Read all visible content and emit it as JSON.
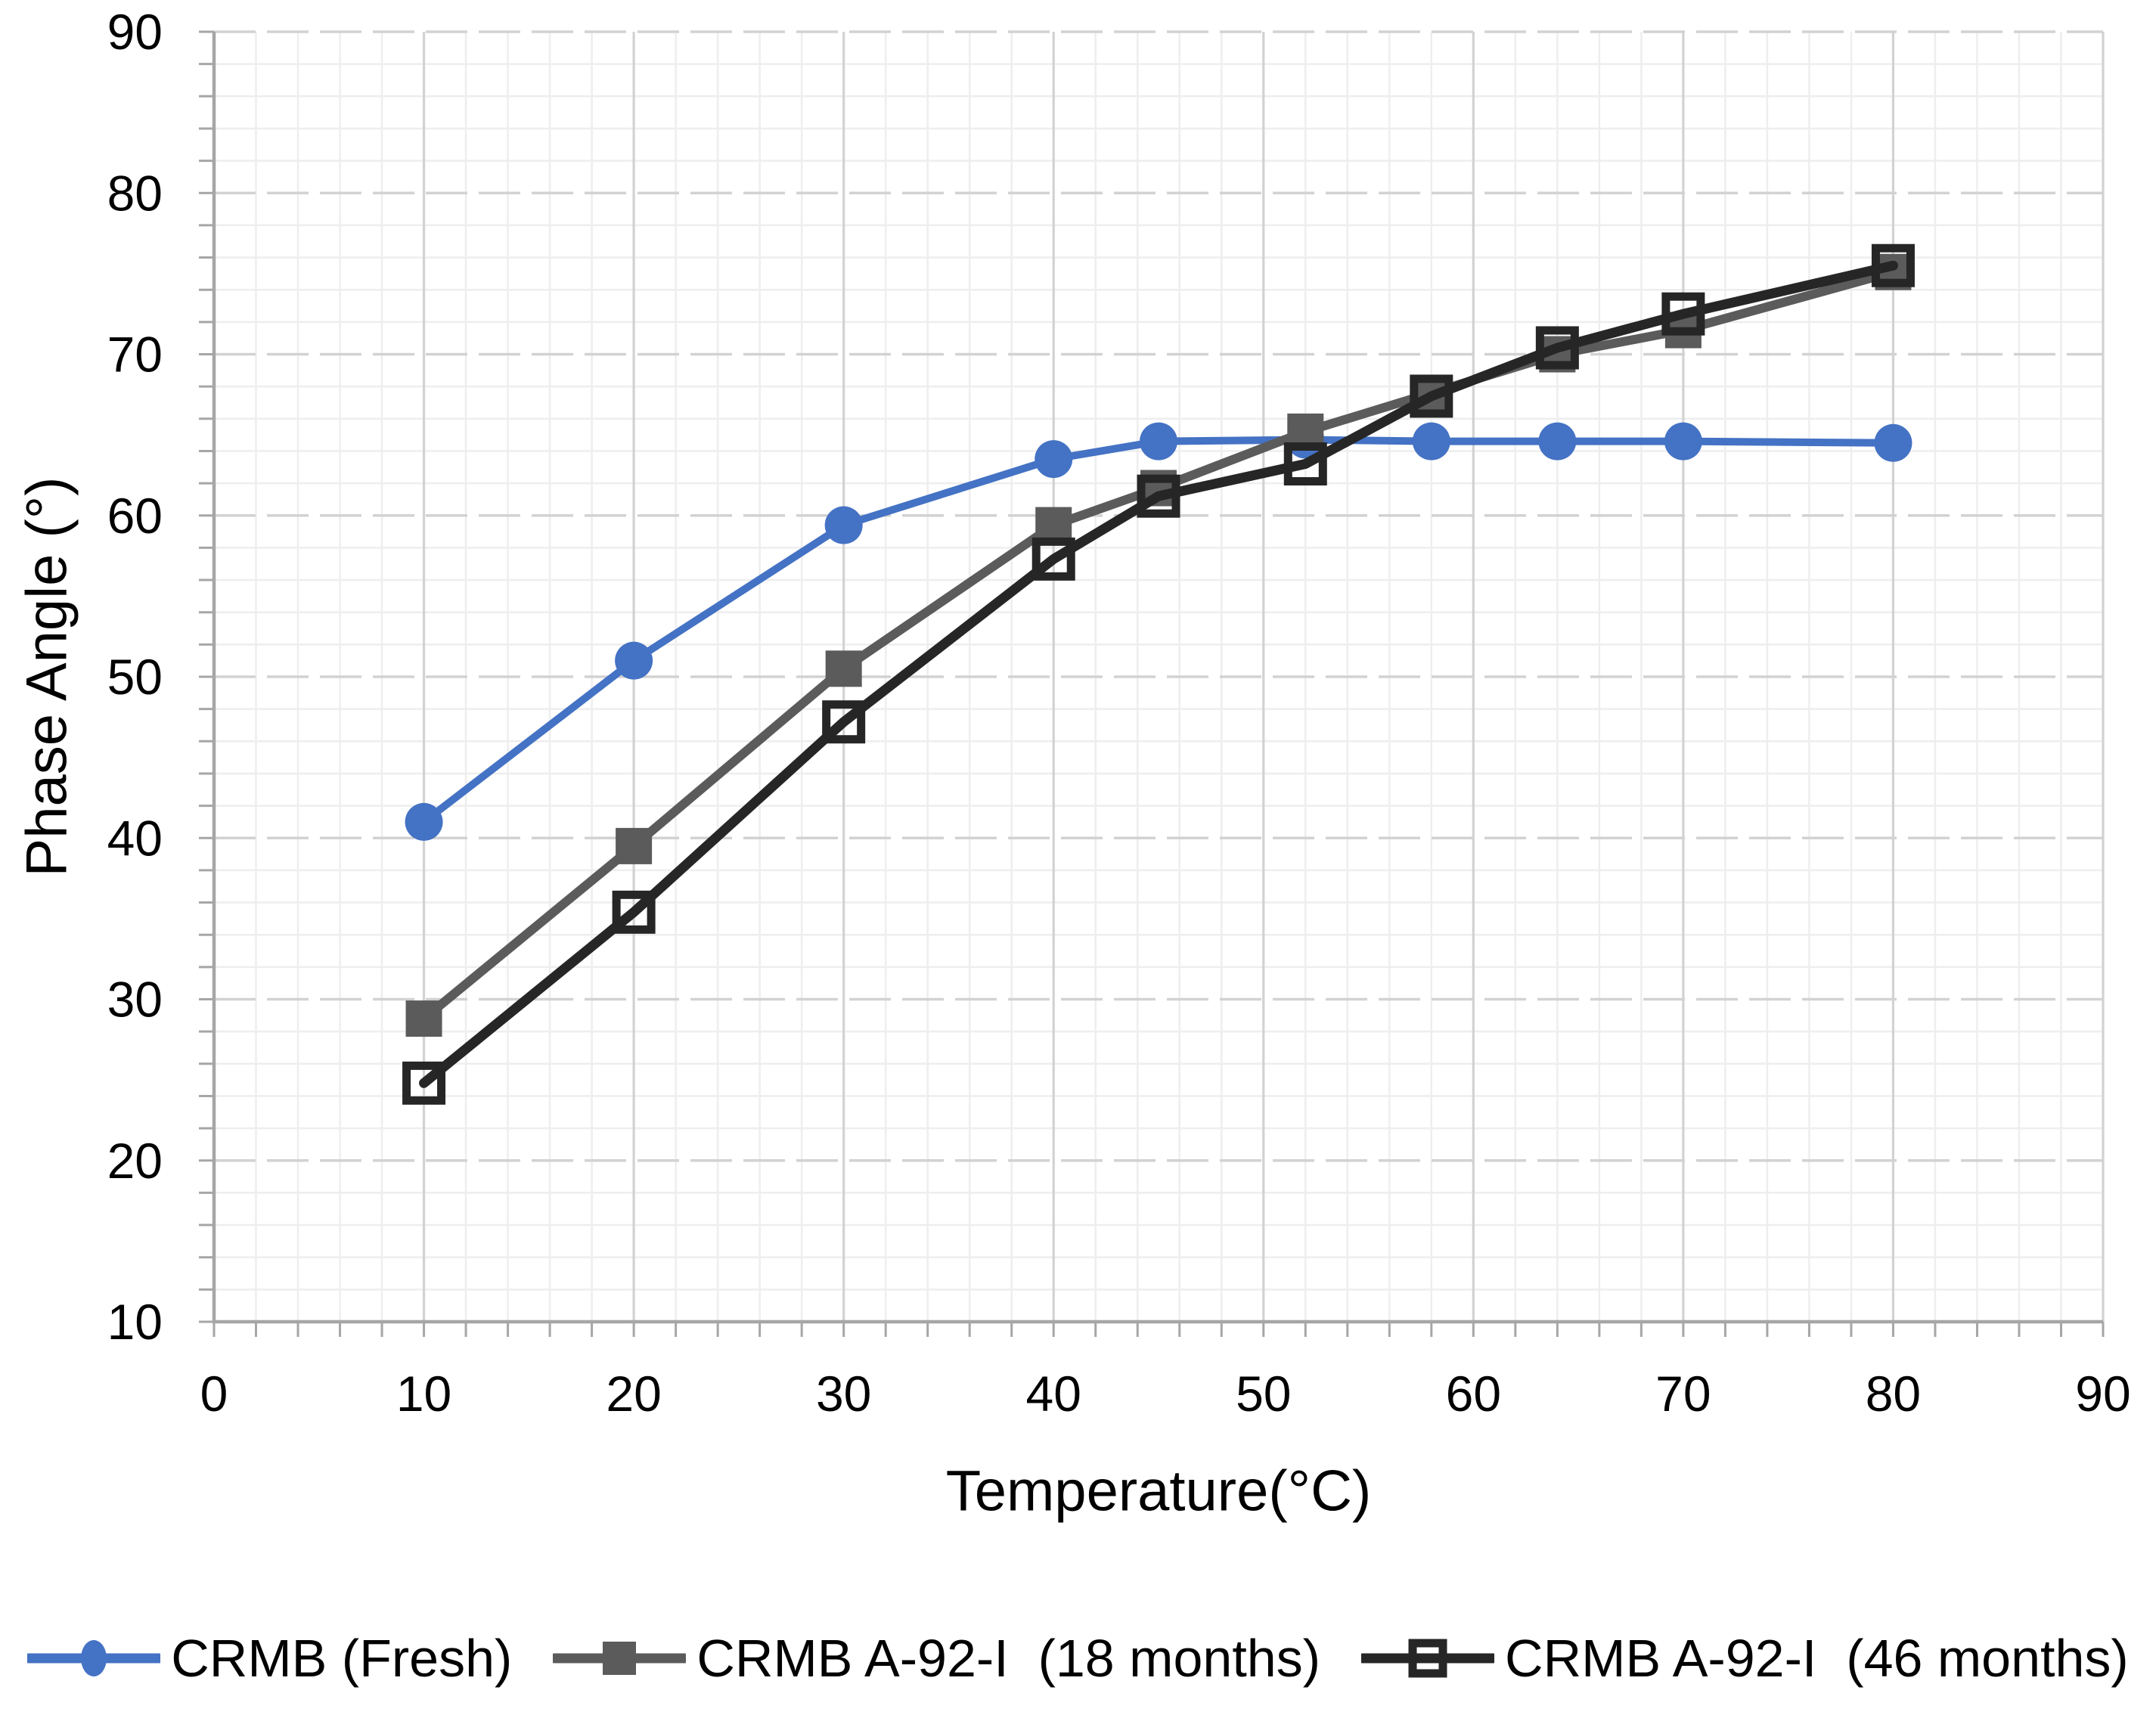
{
  "chart_data": {
    "type": "line",
    "title": "",
    "xlabel": "Temperature(°C)",
    "ylabel": "Phase Angle (°)",
    "x": [
      10,
      20,
      30,
      40,
      45,
      52,
      58,
      64,
      70,
      80
    ],
    "series": [
      {
        "name": "CRMB (Fresh)",
        "color": "#4472C4",
        "marker": "circle",
        "values": [
          41.0,
          51.0,
          59.4,
          63.5,
          64.6,
          64.7,
          64.6,
          64.6,
          64.6,
          64.5
        ]
      },
      {
        "name": "CRMB A-92-I  (18 months)",
        "color": "#5B5B5B",
        "marker": "square",
        "values": [
          28.8,
          39.5,
          50.5,
          59.4,
          61.7,
          65.2,
          67.6,
          70.0,
          71.5,
          75.1
        ]
      },
      {
        "name": "CRMB A-92-I  (46 months)",
        "color": "#262626",
        "marker": "open-square",
        "values": [
          24.8,
          35.4,
          47.2,
          57.3,
          61.2,
          63.2,
          67.4,
          70.4,
          72.5,
          75.5
        ]
      }
    ],
    "x_axis": {
      "min": 0,
      "max": 90,
      "major_step": 10,
      "minor_step": 2,
      "tick_labels": [
        "0",
        "10",
        "20",
        "30",
        "40",
        "50",
        "60",
        "70",
        "80",
        "90"
      ]
    },
    "y_axis": {
      "min": 10,
      "max": 90,
      "major_step": 10,
      "minor_step": 2,
      "tick_labels": [
        "10",
        "20",
        "30",
        "40",
        "50",
        "60",
        "70",
        "80",
        "90"
      ]
    },
    "grid": {
      "minor_color": "#EEEEEE",
      "major_color": "#D2D2D2",
      "axis_color": "#A6A6A6",
      "major_horizontal_dashed": true
    },
    "legend_position": "bottom"
  }
}
